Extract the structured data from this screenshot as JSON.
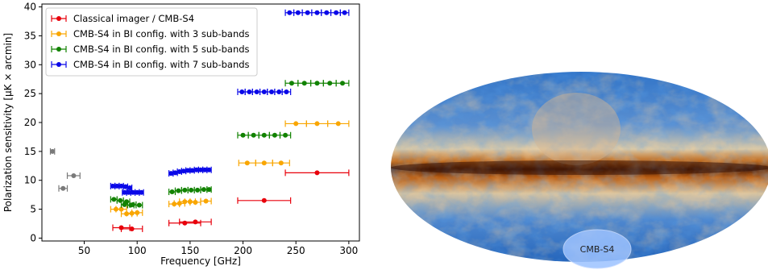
{
  "chart_data": {
    "type": "scatter",
    "xlabel": "Frequency [GHz]",
    "ylabel": "Polarization sensitivity [μK × arcmin]",
    "xlim": [
      10,
      310
    ],
    "ylim": [
      -0.5,
      40.5
    ],
    "xticks": [
      50,
      100,
      150,
      200,
      250,
      300
    ],
    "yticks": [
      0,
      5,
      10,
      15,
      20,
      25,
      30,
      35,
      40
    ],
    "grid": false,
    "legend_position": "top-left",
    "series": [
      {
        "name": "Classical imager / CMB-S4",
        "color": "#e8000b",
        "points": [
          {
            "x": 85,
            "y": 1.8,
            "xmin": 77,
            "xmax": 93
          },
          {
            "x": 95,
            "y": 1.6,
            "xmin": 85,
            "xmax": 105
          },
          {
            "x": 145,
            "y": 2.6,
            "xmin": 130,
            "xmax": 160
          },
          {
            "x": 155,
            "y": 2.8,
            "xmin": 140,
            "xmax": 170
          },
          {
            "x": 220,
            "y": 6.5,
            "xmin": 195,
            "xmax": 245
          },
          {
            "x": 270,
            "y": 11.3,
            "xmin": 240,
            "xmax": 300
          }
        ]
      },
      {
        "name": "CMB-S4 in BI config. with 3 sub-bands",
        "color": "#f9a602",
        "points": [
          {
            "x": 80,
            "y": 5.0,
            "xmin": 75,
            "xmax": 85
          },
          {
            "x": 90,
            "y": 4.2,
            "xmin": 85,
            "xmax": 95
          },
          {
            "x": 100,
            "y": 4.4,
            "xmin": 95,
            "xmax": 105
          },
          {
            "x": 85,
            "y": 5.0,
            "xmin": 80,
            "xmax": 90
          },
          {
            "x": 95,
            "y": 4.3,
            "xmin": 90,
            "xmax": 100
          },
          {
            "x": 135,
            "y": 5.9,
            "xmin": 130,
            "xmax": 140
          },
          {
            "x": 145,
            "y": 6.3,
            "xmin": 140,
            "xmax": 150
          },
          {
            "x": 155,
            "y": 6.2,
            "xmin": 150,
            "xmax": 160
          },
          {
            "x": 140,
            "y": 6.0,
            "xmin": 135,
            "xmax": 145
          },
          {
            "x": 150,
            "y": 6.3,
            "xmin": 145,
            "xmax": 155
          },
          {
            "x": 165,
            "y": 6.4,
            "xmin": 160,
            "xmax": 170
          },
          {
            "x": 204,
            "y": 13.0,
            "xmin": 196,
            "xmax": 212
          },
          {
            "x": 220,
            "y": 13.0,
            "xmin": 212,
            "xmax": 228
          },
          {
            "x": 236,
            "y": 13.0,
            "xmin": 228,
            "xmax": 244
          },
          {
            "x": 250,
            "y": 19.8,
            "xmin": 240,
            "xmax": 260
          },
          {
            "x": 270,
            "y": 19.8,
            "xmin": 260,
            "xmax": 280
          },
          {
            "x": 290,
            "y": 19.8,
            "xmin": 280,
            "xmax": 300
          }
        ]
      },
      {
        "name": "CMB-S4 in BI config. with 5 sub-bands",
        "color": "#118200",
        "points": [
          {
            "x": 78,
            "y": 6.7,
            "xmin": 75,
            "xmax": 81
          },
          {
            "x": 84,
            "y": 6.5,
            "xmin": 81,
            "xmax": 87
          },
          {
            "x": 90,
            "y": 6.3,
            "xmin": 87,
            "xmax": 93
          },
          {
            "x": 96,
            "y": 5.8,
            "xmin": 93,
            "xmax": 99
          },
          {
            "x": 102,
            "y": 5.7,
            "xmin": 99,
            "xmax": 105
          },
          {
            "x": 88,
            "y": 5.8,
            "xmin": 85,
            "xmax": 91
          },
          {
            "x": 94,
            "y": 5.7,
            "xmin": 91,
            "xmax": 97
          },
          {
            "x": 133,
            "y": 8.0,
            "xmin": 130,
            "xmax": 136
          },
          {
            "x": 139,
            "y": 8.2,
            "xmin": 136,
            "xmax": 142
          },
          {
            "x": 145,
            "y": 8.3,
            "xmin": 142,
            "xmax": 148
          },
          {
            "x": 151,
            "y": 8.3,
            "xmin": 148,
            "xmax": 154
          },
          {
            "x": 157,
            "y": 8.3,
            "xmin": 154,
            "xmax": 160
          },
          {
            "x": 163,
            "y": 8.4,
            "xmin": 160,
            "xmax": 166
          },
          {
            "x": 168,
            "y": 8.4,
            "xmin": 166,
            "xmax": 170
          },
          {
            "x": 200,
            "y": 17.8,
            "xmin": 195,
            "xmax": 205
          },
          {
            "x": 210,
            "y": 17.8,
            "xmin": 205,
            "xmax": 215
          },
          {
            "x": 220,
            "y": 17.8,
            "xmin": 215,
            "xmax": 225
          },
          {
            "x": 230,
            "y": 17.8,
            "xmin": 225,
            "xmax": 235
          },
          {
            "x": 240,
            "y": 17.8,
            "xmin": 235,
            "xmax": 245
          },
          {
            "x": 246,
            "y": 26.8,
            "xmin": 240,
            "xmax": 252
          },
          {
            "x": 258,
            "y": 26.8,
            "xmin": 252,
            "xmax": 264
          },
          {
            "x": 270,
            "y": 26.8,
            "xmin": 264,
            "xmax": 276
          },
          {
            "x": 282,
            "y": 26.8,
            "xmin": 276,
            "xmax": 288
          },
          {
            "x": 294,
            "y": 26.8,
            "xmin": 288,
            "xmax": 300
          }
        ]
      },
      {
        "name": "CMB-S4 in BI config. with 7 sub-bands",
        "color": "#0a08e8",
        "points": [
          {
            "x": 77,
            "y": 9.0,
            "xmin": 75,
            "xmax": 79
          },
          {
            "x": 81,
            "y": 9.0,
            "xmin": 79,
            "xmax": 83
          },
          {
            "x": 85,
            "y": 9.0,
            "xmin": 83,
            "xmax": 87
          },
          {
            "x": 89,
            "y": 8.9,
            "xmin": 87,
            "xmax": 91
          },
          {
            "x": 93,
            "y": 8.7,
            "xmin": 91,
            "xmax": 95
          },
          {
            "x": 88,
            "y": 7.9,
            "xmin": 86,
            "xmax": 90
          },
          {
            "x": 92,
            "y": 7.9,
            "xmin": 90,
            "xmax": 94
          },
          {
            "x": 96,
            "y": 7.9,
            "xmin": 94,
            "xmax": 98
          },
          {
            "x": 100,
            "y": 7.9,
            "xmin": 98,
            "xmax": 102
          },
          {
            "x": 104,
            "y": 7.9,
            "xmin": 102,
            "xmax": 106
          },
          {
            "x": 132,
            "y": 11.2,
            "xmin": 130,
            "xmax": 134
          },
          {
            "x": 136,
            "y": 11.3,
            "xmin": 134,
            "xmax": 138
          },
          {
            "x": 140,
            "y": 11.5,
            "xmin": 138,
            "xmax": 142
          },
          {
            "x": 144,
            "y": 11.6,
            "xmin": 142,
            "xmax": 146
          },
          {
            "x": 148,
            "y": 11.7,
            "xmin": 146,
            "xmax": 150
          },
          {
            "x": 152,
            "y": 11.7,
            "xmin": 150,
            "xmax": 154
          },
          {
            "x": 156,
            "y": 11.8,
            "xmin": 154,
            "xmax": 158
          },
          {
            "x": 160,
            "y": 11.8,
            "xmin": 158,
            "xmax": 162
          },
          {
            "x": 164,
            "y": 11.8,
            "xmin": 162,
            "xmax": 166
          },
          {
            "x": 168,
            "y": 11.8,
            "xmin": 166,
            "xmax": 170
          },
          {
            "x": 199,
            "y": 25.3,
            "xmin": 195,
            "xmax": 202
          },
          {
            "x": 206,
            "y": 25.3,
            "xmin": 202,
            "xmax": 209
          },
          {
            "x": 213,
            "y": 25.3,
            "xmin": 209,
            "xmax": 216
          },
          {
            "x": 220,
            "y": 25.3,
            "xmin": 216,
            "xmax": 223
          },
          {
            "x": 227,
            "y": 25.3,
            "xmin": 223,
            "xmax": 230
          },
          {
            "x": 234,
            "y": 25.3,
            "xmin": 230,
            "xmax": 237
          },
          {
            "x": 241,
            "y": 25.3,
            "xmin": 237,
            "xmax": 245
          },
          {
            "x": 244,
            "y": 39.0,
            "xmin": 240,
            "xmax": 248
          },
          {
            "x": 252,
            "y": 39.0,
            "xmin": 248,
            "xmax": 256
          },
          {
            "x": 261,
            "y": 39.0,
            "xmin": 256,
            "xmax": 265
          },
          {
            "x": 270,
            "y": 39.0,
            "xmin": 265,
            "xmax": 274
          },
          {
            "x": 279,
            "y": 39.0,
            "xmin": 274,
            "xmax": 283
          },
          {
            "x": 288,
            "y": 39.0,
            "xmin": 283,
            "xmax": 292
          },
          {
            "x": 296,
            "y": 39.0,
            "xmin": 292,
            "xmax": 300
          }
        ]
      },
      {
        "name": "",
        "color": "#7a7a7a",
        "in_legend": false,
        "points": [
          {
            "x": 20,
            "y": 15.0,
            "xmin": 18,
            "xmax": 22
          },
          {
            "x": 30,
            "y": 8.6,
            "xmin": 26,
            "xmax": 34
          },
          {
            "x": 40,
            "y": 10.8,
            "xmin": 34,
            "xmax": 46
          }
        ]
      }
    ]
  },
  "sky_map": {
    "label": "CMB-S4",
    "colors": {
      "cold": "#1a5fb4",
      "mid": "#e9e4d5",
      "warm": "#b35806",
      "hot": "#5a1e02",
      "patch": "#9cc2ff"
    }
  }
}
